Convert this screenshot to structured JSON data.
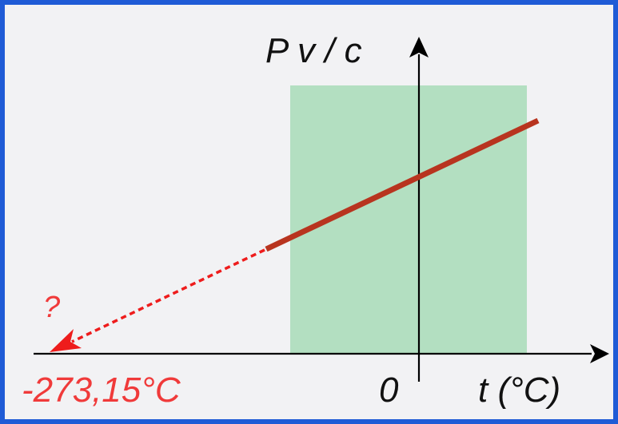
{
  "diagram": {
    "y_axis_label": "P v / c",
    "x_axis_label": "t (°C)",
    "origin_label": "0",
    "absolute_zero_label": "-273,15°C",
    "question_label": "?",
    "colors": {
      "border": "#1f5bd6",
      "background": "#f2f2f4",
      "region": "#b3dfc1",
      "measured_line": "#b8341f",
      "extrapolation": "#ee1c1c",
      "axis": "#000000",
      "red_text": "#f03a3a"
    }
  }
}
